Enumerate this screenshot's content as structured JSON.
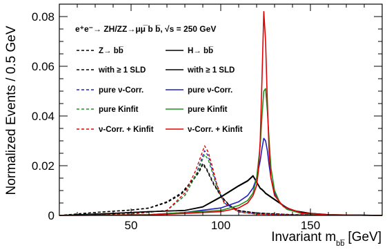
{
  "chart_data": {
    "type": "line",
    "header": "e⁺e⁻→ ZH/ZZ→μμ̅ b b̅,  √s = 250 GeV",
    "xlabel": "Invariant m",
    "xlabel_sub": "bb̅",
    "xlabel_unit": "[GeV]",
    "ylabel": "Normalized Events / 0.5 GeV",
    "xlim": [
      10,
      190
    ],
    "ylim": [
      0,
      0.085
    ],
    "x_ticks": [
      50,
      100,
      150
    ],
    "x_tick_labels": [
      "50",
      "100",
      "150"
    ],
    "y_ticks": [
      0,
      0.02,
      0.04,
      0.06,
      0.08
    ],
    "y_tick_labels": [
      "0",
      "0.02",
      "0.04",
      "0.06",
      "0.08"
    ],
    "legend_position": "top-left",
    "series": [
      {
        "name": "Z→ bb̅",
        "color": "#000000",
        "dash": "dash",
        "x": [
          10,
          30,
          50,
          60,
          70,
          78,
          84,
          88,
          90,
          92,
          94,
          96,
          100,
          105,
          110,
          120,
          140,
          190
        ],
        "y": [
          0,
          0.0012,
          0.0022,
          0.003,
          0.0055,
          0.009,
          0.014,
          0.018,
          0.021,
          0.019,
          0.016,
          0.013,
          0.008,
          0.004,
          0.002,
          0.001,
          0.0003,
          0
        ]
      },
      {
        "name": "with ≥ 1 SLD",
        "color": "#000000",
        "dash": "dash",
        "x": [
          10,
          30,
          50,
          60,
          70,
          78,
          84,
          88,
          90,
          92,
          94,
          96,
          100,
          105,
          110,
          120,
          140,
          190
        ],
        "y": [
          0,
          0.0012,
          0.0021,
          0.0029,
          0.0052,
          0.0085,
          0.0135,
          0.0175,
          0.0205,
          0.0185,
          0.0155,
          0.0125,
          0.0078,
          0.0039,
          0.0019,
          0.001,
          0.0003,
          0
        ]
      },
      {
        "name": "pure ν-Corr.",
        "color": "#1f1fbf",
        "dash": "dash",
        "x": [
          10,
          50,
          70,
          80,
          86,
          89,
          91,
          93,
          95,
          98,
          102,
          110,
          120,
          140,
          190
        ],
        "y": [
          0,
          0.0006,
          0.002,
          0.008,
          0.016,
          0.022,
          0.026,
          0.024,
          0.019,
          0.012,
          0.005,
          0.0015,
          0.0006,
          0.0002,
          0
        ]
      },
      {
        "name": "pure Kinfit",
        "color": "#1f8f1f",
        "dash": "dash",
        "x": [
          10,
          50,
          70,
          80,
          86,
          89,
          91,
          93,
          95,
          98,
          102,
          110,
          120,
          140,
          190
        ],
        "y": [
          0,
          0.0006,
          0.002,
          0.008,
          0.016,
          0.021,
          0.0245,
          0.0225,
          0.018,
          0.011,
          0.0048,
          0.0014,
          0.0005,
          0.0002,
          0
        ]
      },
      {
        "name": "ν-Corr. + Kinfit",
        "color": "#e00000",
        "dash": "dash",
        "x": [
          10,
          50,
          70,
          80,
          86,
          89,
          91,
          93,
          95,
          98,
          102,
          110,
          120,
          140,
          190
        ],
        "y": [
          0,
          0.0006,
          0.002,
          0.009,
          0.018,
          0.024,
          0.028,
          0.0255,
          0.0205,
          0.012,
          0.005,
          0.0014,
          0.0005,
          0.0002,
          0
        ]
      },
      {
        "name": "H→ bb̅",
        "color": "#000000",
        "dash": "solid",
        "x": [
          10,
          40,
          60,
          80,
          90,
          100,
          110,
          115,
          118,
          120,
          122,
          123,
          124,
          125,
          126,
          128,
          132,
          136,
          140,
          150,
          160,
          190
        ],
        "y": [
          0,
          0.0008,
          0.0015,
          0.002,
          0.0035,
          0.0075,
          0.012,
          0.014,
          0.016,
          0.0135,
          0.011,
          0.0105,
          0.0098,
          0.009,
          0.0085,
          0.0075,
          0.0055,
          0.0035,
          0.002,
          0.0008,
          0.0003,
          0
        ]
      },
      {
        "name": "with ≥ 1 SLD",
        "color": "#000000",
        "dash": "solid",
        "x": [
          10,
          40,
          60,
          80,
          90,
          100,
          110,
          115,
          118,
          120,
          122,
          123,
          124,
          125,
          126,
          128,
          132,
          136,
          140,
          150,
          160,
          190
        ],
        "y": [
          0,
          0.0008,
          0.0015,
          0.002,
          0.0034,
          0.0073,
          0.0118,
          0.0138,
          0.0158,
          0.0133,
          0.0108,
          0.0103,
          0.0096,
          0.0088,
          0.0083,
          0.0073,
          0.0053,
          0.0034,
          0.0019,
          0.0008,
          0.0003,
          0
        ]
      },
      {
        "name": "pure ν-Corr.",
        "color": "#1f1fbf",
        "dash": "solid",
        "x": [
          10,
          60,
          80,
          100,
          110,
          115,
          118,
          120,
          122,
          123,
          124,
          125,
          126,
          127,
          128,
          130,
          133,
          137,
          145,
          160,
          190
        ],
        "y": [
          0,
          0.0003,
          0.0012,
          0.003,
          0.0055,
          0.008,
          0.011,
          0.015,
          0.022,
          0.027,
          0.031,
          0.03,
          0.026,
          0.02,
          0.015,
          0.009,
          0.005,
          0.0025,
          0.0008,
          0.0002,
          0
        ]
      },
      {
        "name": "pure Kinfit",
        "color": "#1f8f1f",
        "dash": "solid",
        "x": [
          10,
          60,
          80,
          100,
          110,
          115,
          118,
          120,
          122,
          123,
          124,
          125,
          126,
          127,
          128,
          130,
          133,
          137,
          145,
          160,
          190
        ],
        "y": [
          0,
          0.0003,
          0.0012,
          0.002,
          0.004,
          0.006,
          0.009,
          0.015,
          0.028,
          0.04,
          0.05,
          0.051,
          0.042,
          0.03,
          0.019,
          0.01,
          0.005,
          0.0024,
          0.0008,
          0.0002,
          0
        ]
      },
      {
        "name": "ν-Corr. + Kinfit",
        "color": "#e00000",
        "dash": "solid",
        "x": [
          10,
          60,
          80,
          100,
          110,
          115,
          118,
          120,
          121,
          122,
          123,
          124,
          125,
          126,
          127,
          128,
          130,
          135,
          145,
          160,
          190
        ],
        "y": [
          0,
          0.0002,
          0.0008,
          0.0015,
          0.003,
          0.005,
          0.008,
          0.012,
          0.018,
          0.03,
          0.055,
          0.082,
          0.07,
          0.045,
          0.025,
          0.015,
          0.008,
          0.0035,
          0.001,
          0.0002,
          0
        ]
      }
    ]
  }
}
